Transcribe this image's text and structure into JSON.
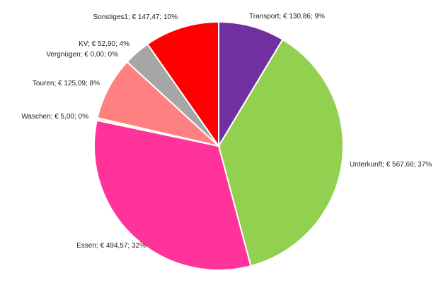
{
  "chart_data": {
    "type": "pie",
    "title": "",
    "currency": "€",
    "start_angle_deg": 0,
    "direction": "clockwise",
    "slices": [
      {
        "name": "Transport",
        "value": 130.86,
        "percent": 9,
        "label": "Transport; € 130,86; 9%",
        "color": "#7030a0"
      },
      {
        "name": "Unterkunft",
        "value": 567.66,
        "percent": 37,
        "label": "Unterkunft; € 567,66; 37%",
        "color": "#92d050"
      },
      {
        "name": "Essen",
        "value": 494.57,
        "percent": 32,
        "label": "Essen; € 494,57; 32%",
        "color": "#ff3399"
      },
      {
        "name": "Waschen",
        "value": 5.0,
        "percent": 0,
        "label": "Waschen; € 5,00; 0%",
        "color": "#ffff99"
      },
      {
        "name": "Touren",
        "value": 125.09,
        "percent": 8,
        "label": "Touren; € 125,09; 8%",
        "color": "#ff8080"
      },
      {
        "name": "Vergnügen",
        "value": 0.0,
        "percent": 0,
        "label": "Vergnügen; € 0,00; 0%",
        "color": "#c0c0c0"
      },
      {
        "name": "KV",
        "value": 52.9,
        "percent": 4,
        "label": "KV; € 52,90; 4%",
        "color": "#a6a6a6"
      },
      {
        "name": "Sonstiges1",
        "value": 147.47,
        "percent": 10,
        "label": "Sonstiges1; € 147,47; 10%",
        "color": "#ff0000"
      }
    ]
  }
}
